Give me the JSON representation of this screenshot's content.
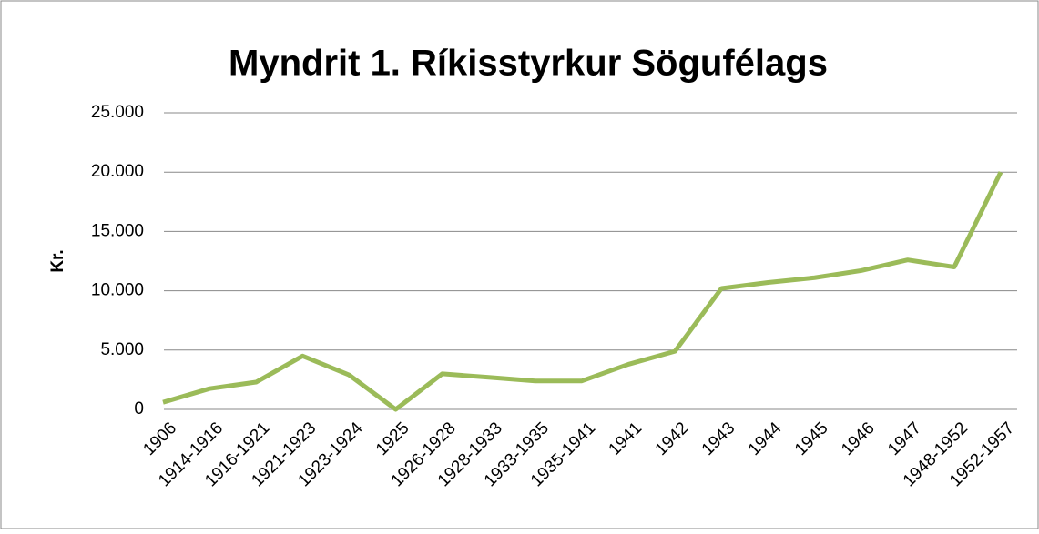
{
  "chart_data": {
    "type": "line",
    "title": "Myndrit 1. Ríkisstyrkur Sögufélags",
    "y_label": "Kr.",
    "categories": [
      "1906",
      "1914-1916",
      "1916-1921",
      "1921-1923",
      "1923-1924",
      "1925",
      "1926-1928",
      "1928-1933",
      "1933-1935",
      "1935-1941",
      "1941",
      "1942",
      "1943",
      "1944",
      "1945",
      "1946",
      "1947",
      "1948-1952",
      "1952-1957"
    ],
    "series": [
      {
        "name": "Kr.",
        "color": "#9bbb59",
        "values": [
          600,
          1750,
          2300,
          4500,
          2900,
          0,
          3000,
          2700,
          2400,
          2400,
          3800,
          4900,
          10200,
          10700,
          11100,
          11700,
          12600,
          12000,
          20000
        ]
      }
    ],
    "ylim": [
      0,
      25000
    ],
    "yticks": [
      0,
      {
        "value": 5000,
        "label": "5.000"
      },
      {
        "value": 10000,
        "label": "10.000"
      },
      {
        "value": 15000,
        "label": "15.000"
      },
      {
        "value": 20000,
        "label": "20.000"
      },
      {
        "value": 25000,
        "label": "25.000"
      }
    ],
    "grid": true
  }
}
